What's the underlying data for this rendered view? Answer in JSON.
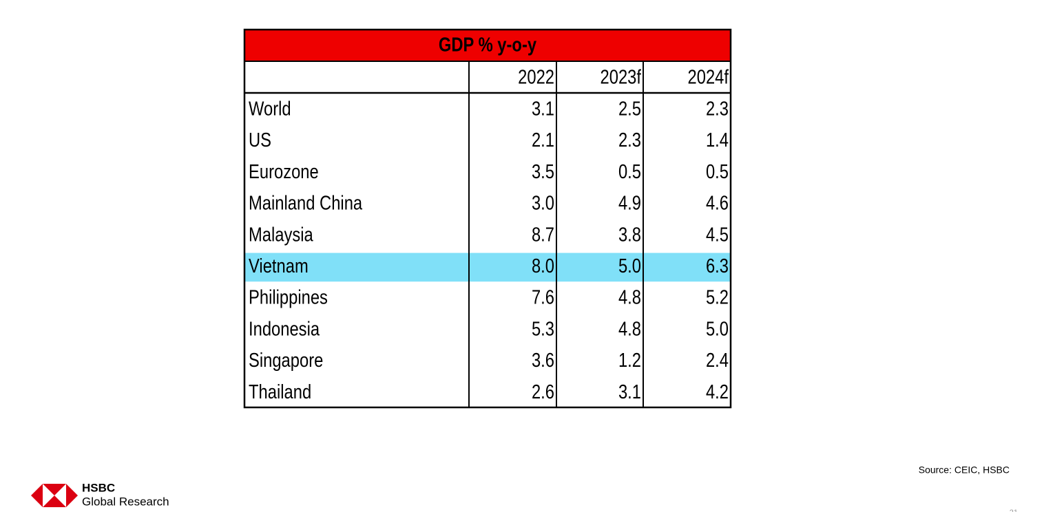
{
  "table": {
    "title": "GDP % y-o-y",
    "title_color": "#ee0000",
    "highlight_color": "#80e0f8",
    "columns": [
      "2022",
      "2023f",
      "2024f"
    ],
    "rows": [
      {
        "label": "World",
        "values": [
          "3.1",
          "2.5",
          "2.3"
        ]
      },
      {
        "label": "US",
        "values": [
          "2.1",
          "2.3",
          "1.4"
        ]
      },
      {
        "label": "Eurozone",
        "values": [
          "3.5",
          "0.5",
          "0.5"
        ]
      },
      {
        "label": "Mainland China",
        "values": [
          "3.0",
          "4.9",
          "4.6"
        ]
      },
      {
        "label": "Malaysia",
        "values": [
          "8.7",
          "3.8",
          "4.5"
        ]
      },
      {
        "label": "Vietnam",
        "values": [
          "8.0",
          "5.0",
          "6.3"
        ],
        "highlight": true
      },
      {
        "label": "Philippines",
        "values": [
          "7.6",
          "4.8",
          "5.2"
        ]
      },
      {
        "label": "Indonesia",
        "values": [
          "5.3",
          "4.8",
          "5.0"
        ]
      },
      {
        "label": "Singapore",
        "values": [
          "3.6",
          "1.2",
          "2.4"
        ]
      },
      {
        "label": "Thailand",
        "values": [
          "2.6",
          "3.1",
          "4.2"
        ]
      }
    ]
  },
  "footer": {
    "source": "Source: CEIC, HSBC",
    "brand": "HSBC",
    "unit": "Global Research",
    "page_number": "21"
  }
}
